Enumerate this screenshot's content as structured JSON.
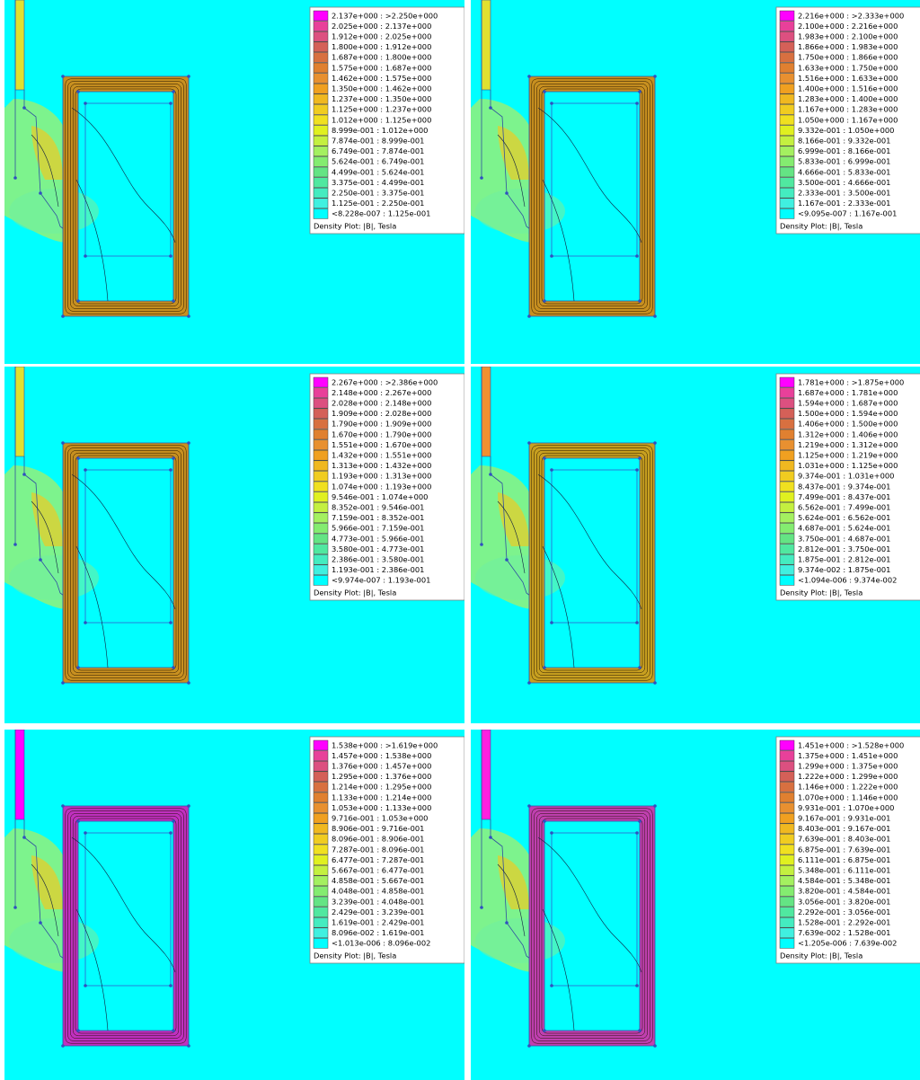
{
  "panels": [
    {
      "legend": [
        "2.137e+000 : >2.250e+000",
        "2.025e+000 : 2.137e+000",
        "1.912e+000 : 2.025e+000",
        "1.800e+000 : 1.912e+000",
        "1.687e+000 : 1.800e+000",
        "1.575e+000 : 1.687e+000",
        "1.462e+000 : 1.575e+000",
        "1.350e+000 : 1.462e+000",
        "1.237e+000 : 1.350e+000",
        "1.125e+000 : 1.237e+000",
        "1.012e+000 : 1.125e+000",
        "8.999e-001 : 1.012e+000",
        "7.874e-001 : 8.999e-001",
        "6.749e-001 : 7.874e-001",
        "5.624e-001 : 6.749e-001",
        "4.499e-001 : 5.624e-001",
        "3.375e-001 : 4.499e-001",
        "2.250e-001 : 3.375e-001",
        "1.125e-001 : 2.250e-001",
        "<8.228e-007 : 1.125e-001"
      ],
      "caption": "Density Plot: |B|, Tesla"
    },
    {
      "legend": [
        "2.216e+000 : >2.333e+000",
        "2.100e+000 : 2.216e+000",
        "1.983e+000 : 2.100e+000",
        "1.866e+000 : 1.983e+000",
        "1.750e+000 : 1.866e+000",
        "1.633e+000 : 1.750e+000",
        "1.516e+000 : 1.633e+000",
        "1.400e+000 : 1.516e+000",
        "1.283e+000 : 1.400e+000",
        "1.167e+000 : 1.283e+000",
        "1.050e+000 : 1.167e+000",
        "9.332e-001 : 1.050e+000",
        "8.166e-001 : 9.332e-001",
        "6.999e-001 : 8.166e-001",
        "5.833e-001 : 6.999e-001",
        "4.666e-001 : 5.833e-001",
        "3.500e-001 : 4.666e-001",
        "2.333e-001 : 3.500e-001",
        "1.167e-001 : 2.333e-001",
        "<9.095e-007 : 1.167e-001"
      ],
      "caption": "Density Plot: |B|, Tesla"
    },
    {
      "legend": [
        "2.267e+000 : >2.386e+000",
        "2.148e+000 : 2.267e+000",
        "2.028e+000 : 2.148e+000",
        "1.909e+000 : 2.028e+000",
        "1.790e+000 : 1.909e+000",
        "1.670e+000 : 1.790e+000",
        "1.551e+000 : 1.670e+000",
        "1.432e+000 : 1.551e+000",
        "1.313e+000 : 1.432e+000",
        "1.193e+000 : 1.313e+000",
        "1.074e+000 : 1.193e+000",
        "9.546e-001 : 1.074e+000",
        "8.352e-001 : 9.546e-001",
        "7.159e-001 : 8.352e-001",
        "5.966e-001 : 7.159e-001",
        "4.773e-001 : 5.966e-001",
        "3.580e-001 : 4.773e-001",
        "2.386e-001 : 3.580e-001",
        "1.193e-001 : 2.386e-001",
        "<9.974e-007 : 1.193e-001"
      ],
      "caption": "Density Plot: |B|, Tesla"
    },
    {
      "legend": [
        "1.781e+000 : >1.875e+000",
        "1.687e+000 : 1.781e+000",
        "1.594e+000 : 1.687e+000",
        "1.500e+000 : 1.594e+000",
        "1.406e+000 : 1.500e+000",
        "1.312e+000 : 1.406e+000",
        "1.219e+000 : 1.312e+000",
        "1.125e+000 : 1.219e+000",
        "1.031e+000 : 1.125e+000",
        "9.374e-001 : 1.031e+000",
        "8.437e-001 : 9.374e-001",
        "7.499e-001 : 8.437e-001",
        "6.562e-001 : 7.499e-001",
        "5.624e-001 : 6.562e-001",
        "4.687e-001 : 5.624e-001",
        "3.750e-001 : 4.687e-001",
        "2.812e-001 : 3.750e-001",
        "1.875e-001 : 2.812e-001",
        "9.374e-002 : 1.875e-001",
        "<1.094e-006 : 9.374e-002"
      ],
      "caption": "Density Plot: |B|, Tesla"
    },
    {
      "legend": [
        "1.538e+000 : >1.619e+000",
        "1.457e+000 : 1.538e+000",
        "1.376e+000 : 1.457e+000",
        "1.295e+000 : 1.376e+000",
        "1.214e+000 : 1.295e+000",
        "1.133e+000 : 1.214e+000",
        "1.053e+000 : 1.133e+000",
        "9.716e-001 : 1.053e+000",
        "8.906e-001 : 9.716e-001",
        "8.096e-001 : 8.906e-001",
        "7.287e-001 : 8.096e-001",
        "6.477e-001 : 7.287e-001",
        "5.667e-001 : 6.477e-001",
        "4.858e-001 : 5.667e-001",
        "4.048e-001 : 4.858e-001",
        "3.239e-001 : 4.048e-001",
        "2.429e-001 : 3.239e-001",
        "1.619e-001 : 2.429e-001",
        "8.096e-002 : 1.619e-001",
        "<1.013e-006 : 8.096e-002"
      ],
      "caption": "Density Plot: |B|, Tesla"
    },
    {
      "legend": [
        "1.451e+000 : >1.528e+000",
        "1.375e+000 : 1.451e+000",
        "1.299e+000 : 1.375e+000",
        "1.222e+000 : 1.299e+000",
        "1.146e+000 : 1.222e+000",
        "1.070e+000 : 1.146e+000",
        "9.931e-001 : 1.070e+000",
        "9.167e-001 : 9.931e-001",
        "8.403e-001 : 9.167e-001",
        "7.639e-001 : 8.403e-001",
        "6.875e-001 : 7.639e-001",
        "6.111e-001 : 6.875e-001",
        "5.348e-001 : 6.111e-001",
        "4.584e-001 : 5.348e-001",
        "3.820e-001 : 4.584e-001",
        "3.056e-001 : 3.820e-001",
        "2.292e-001 : 3.056e-001",
        "1.528e-001 : 2.292e-001",
        "7.639e-002 : 1.528e-001",
        "<1.205e-006 : 7.639e-002"
      ],
      "caption": "Density Plot: |B|, Tesla"
    }
  ]
}
